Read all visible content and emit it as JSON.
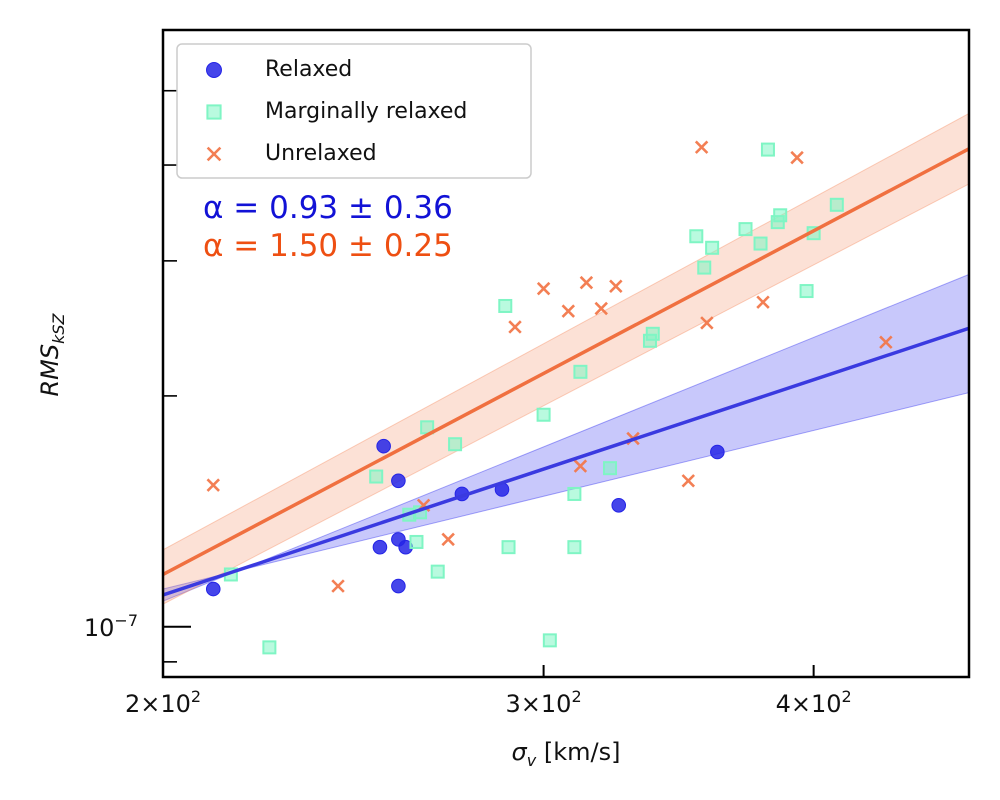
{
  "chart_data": {
    "type": "scatter",
    "xscale": "log",
    "yscale": "log",
    "xlim": [
      200,
      472
    ],
    "ylim": [
      8.6e-08,
      6e-07
    ],
    "xlabel": "σᵥ [km/s]",
    "ylabel": "RMS_kSZ",
    "xticks": [
      {
        "value": 200,
        "mantissa": "2",
        "exp": "2"
      },
      {
        "value": 300,
        "mantissa": "3",
        "exp": "2"
      },
      {
        "value": 400,
        "mantissa": "4",
        "exp": "2"
      }
    ],
    "yticks_major": [
      {
        "value": 1e-07,
        "base": "10",
        "exp": "−7"
      }
    ],
    "yticks_minor": [
      9e-08,
      2e-07,
      3e-07,
      4e-07,
      5e-07
    ],
    "legend": {
      "position": "upper-left",
      "entries": [
        {
          "label": "Relaxed",
          "marker": "circle",
          "color": "#2424e6"
        },
        {
          "label": "Marginally relaxed",
          "marker": "square",
          "color": "#7ff5c4"
        },
        {
          "label": "Unrelaxed",
          "marker": "x",
          "color": "#f2784b"
        }
      ]
    },
    "annotations": [
      {
        "text": "α = 0.93 ± 0.36",
        "color": "#1212d6"
      },
      {
        "text": "α = 1.50 ± 0.25",
        "color": "#ee4f12"
      }
    ],
    "series": [
      {
        "name": "Relaxed",
        "marker": "circle",
        "color": "#2424e6",
        "points": [
          [
            211,
            1.12e-07
          ],
          [
            253,
            1.72e-07
          ],
          [
            252,
            1.27e-07
          ],
          [
            257,
            1.55e-07
          ],
          [
            257,
            1.3e-07
          ],
          [
            259,
            1.27e-07
          ],
          [
            257,
            1.13e-07
          ],
          [
            275,
            1.49e-07
          ],
          [
            287,
            1.51e-07
          ],
          [
            325,
            1.44e-07
          ],
          [
            361,
            1.69e-07
          ]
        ]
      },
      {
        "name": "Marginally relaxed",
        "marker": "square",
        "color": "#7ff5c4",
        "points": [
          [
            215,
            1.17e-07
          ],
          [
            224,
            9.4e-08
          ],
          [
            251,
            1.57e-07
          ],
          [
            260,
            1.4e-07
          ],
          [
            262,
            1.29e-07
          ],
          [
            263,
            1.41e-07
          ],
          [
            265,
            1.82e-07
          ],
          [
            268,
            1.18e-07
          ],
          [
            273,
            1.73e-07
          ],
          [
            288,
            2.62e-07
          ],
          [
            289,
            1.27e-07
          ],
          [
            300,
            1.89e-07
          ],
          [
            302,
            9.6e-08
          ],
          [
            310,
            1.27e-07
          ],
          [
            310,
            1.49e-07
          ],
          [
            312,
            2.15e-07
          ],
          [
            322,
            1.61e-07
          ],
          [
            336,
            2.36e-07
          ],
          [
            337,
            2.41e-07
          ],
          [
            353,
            3.23e-07
          ],
          [
            356,
            2.94e-07
          ],
          [
            359,
            3.12e-07
          ],
          [
            372,
            3.3e-07
          ],
          [
            378,
            3.16e-07
          ],
          [
            381,
            4.19e-07
          ],
          [
            385,
            3.37e-07
          ],
          [
            386,
            3.44e-07
          ],
          [
            397,
            2.74e-07
          ],
          [
            400,
            3.26e-07
          ],
          [
            410,
            3.55e-07
          ]
        ]
      },
      {
        "name": "Unrelaxed",
        "marker": "x",
        "color": "#f2784b",
        "points": [
          [
            211,
            1.53e-07
          ],
          [
            241,
            1.13e-07
          ],
          [
            264,
            1.44e-07
          ],
          [
            271,
            1.3e-07
          ],
          [
            291,
            2.46e-07
          ],
          [
            300,
            2.76e-07
          ],
          [
            308,
            2.58e-07
          ],
          [
            312,
            1.62e-07
          ],
          [
            314,
            2.81e-07
          ],
          [
            319,
            2.6e-07
          ],
          [
            324,
            2.78e-07
          ],
          [
            330,
            1.76e-07
          ],
          [
            350,
            1.55e-07
          ],
          [
            355,
            4.22e-07
          ],
          [
            357,
            2.49e-07
          ],
          [
            379,
            2.65e-07
          ],
          [
            393,
            4.09e-07
          ],
          [
            432,
            2.35e-07
          ]
        ]
      }
    ],
    "fits": [
      {
        "name": "Relaxed fit",
        "alpha": 0.93,
        "color": "#3a3ae0",
        "band_color": "#3b3bef",
        "line": [
          [
            200,
            1.1e-07
          ],
          [
            472,
            2.45e-07
          ]
        ],
        "upper": [
          [
            200,
            1.08e-07
          ],
          [
            472,
            2.88e-07
          ]
        ],
        "lower": [
          [
            200,
            1.12e-07
          ],
          [
            472,
            2.02e-07
          ]
        ]
      },
      {
        "name": "Unrelaxed fit",
        "alpha": 1.5,
        "color": "#f07040",
        "band_color": "#f6956d",
        "line": [
          [
            200,
            1.17e-07
          ],
          [
            472,
            4.2e-07
          ]
        ],
        "upper": [
          [
            200,
            1.26e-07
          ],
          [
            472,
            4.67e-07
          ]
        ],
        "lower": [
          [
            200,
            1.07e-07
          ],
          [
            472,
            3.78e-07
          ]
        ]
      }
    ]
  }
}
